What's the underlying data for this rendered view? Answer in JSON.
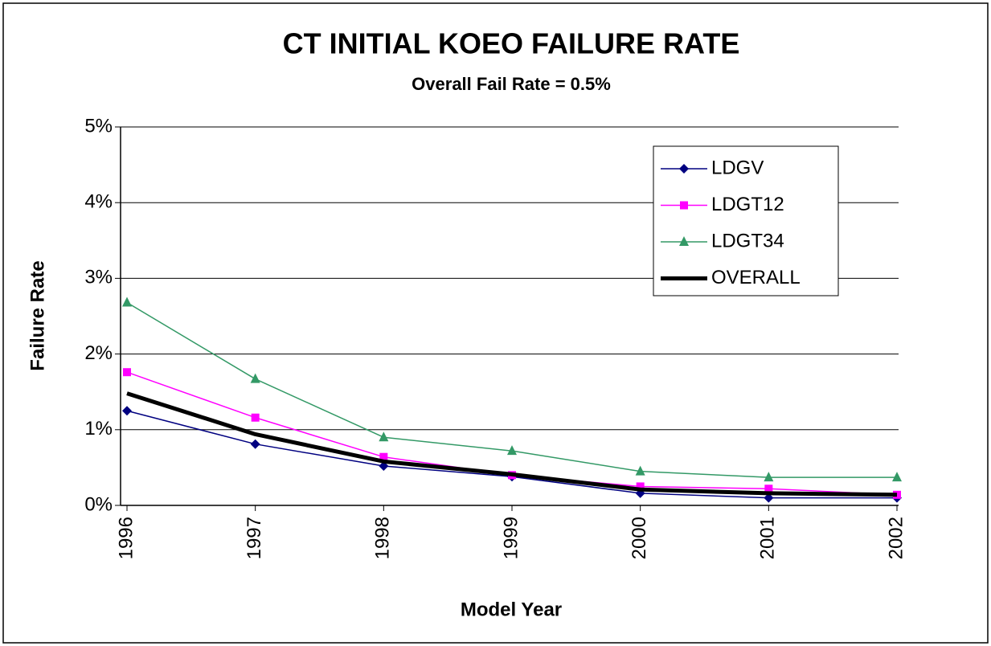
{
  "chart_data": {
    "type": "line",
    "title": "CT INITIAL KOEO  FAILURE RATE",
    "subtitle": "Overall Fail Rate = 0.5%",
    "x_label": "Model Year",
    "y_label": "Failure Rate",
    "categories": [
      "1996",
      "1997",
      "1998",
      "1999",
      "2000",
      "2001",
      "2002"
    ],
    "series": [
      {
        "name": "LDGV",
        "color": "#000080",
        "marker": "diamond",
        "values": [
          1.25,
          0.81,
          0.52,
          0.38,
          0.16,
          0.1,
          0.1
        ]
      },
      {
        "name": "LDGT12",
        "color": "#ff00ff",
        "marker": "square",
        "values": [
          1.76,
          1.16,
          0.64,
          0.4,
          0.25,
          0.22,
          0.14
        ]
      },
      {
        "name": "LDGT34",
        "color": "#339966",
        "marker": "triangle",
        "values": [
          2.68,
          1.67,
          0.9,
          0.72,
          0.45,
          0.37,
          0.37
        ]
      },
      {
        "name": "OVERALL",
        "color": "#000000",
        "marker": "none",
        "values": [
          1.48,
          0.94,
          0.58,
          0.41,
          0.21,
          0.16,
          0.14
        ]
      }
    ],
    "ylim": [
      0,
      5
    ],
    "yticks": [
      {
        "value": 0,
        "label": "0%"
      },
      {
        "value": 1,
        "label": "1%"
      },
      {
        "value": 2,
        "label": "2%"
      },
      {
        "value": 3,
        "label": "3%"
      },
      {
        "value": 4,
        "label": "4%"
      },
      {
        "value": 5,
        "label": "5%"
      }
    ],
    "grid": true,
    "legend": "upper-right"
  }
}
